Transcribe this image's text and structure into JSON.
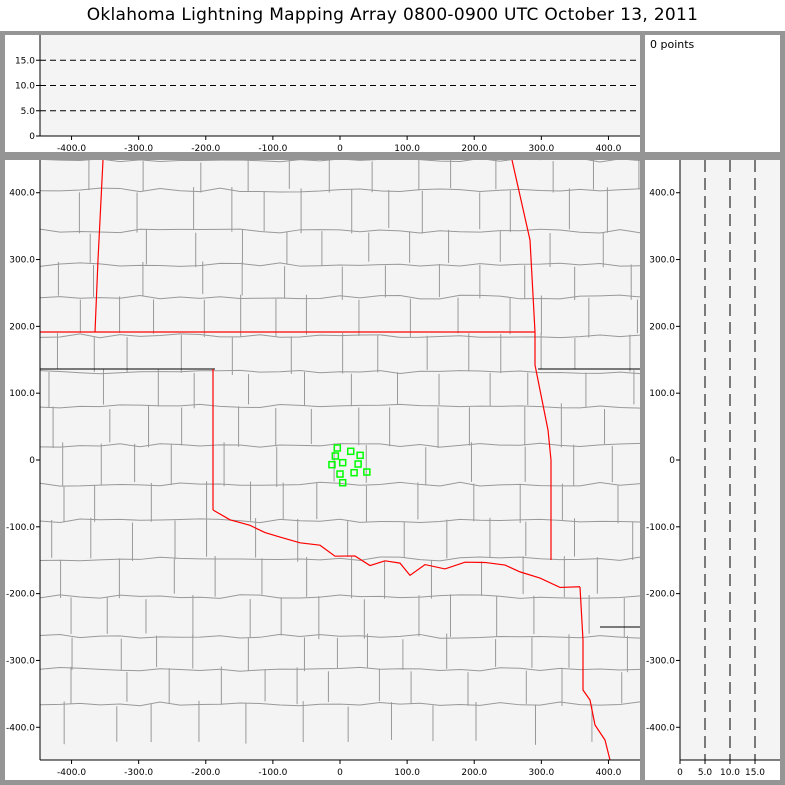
{
  "title": "Oklahoma Lightning Mapping Array   0800-0900 UTC  October 13, 2011",
  "points_label": "0 points",
  "colors": {
    "background": "#f4f4f4",
    "frame": "#959595",
    "county_lines": "#999999",
    "state_border": "#ff0000",
    "other_border": "#000000",
    "source_points": "#00ff00",
    "altitude_guides": "#000000"
  },
  "chart_data": [
    {
      "panel": "altitude-vs-east-west",
      "type": "scatter",
      "x_ticks": [
        "-400.0",
        "-300.0",
        "-200.0",
        "-100.0",
        "0",
        "100.0",
        "200.0",
        "300.0",
        "400.0"
      ],
      "y_ticks": [
        "0",
        "5.0",
        "10.0",
        "15.0"
      ],
      "xlim": [
        -447,
        447
      ],
      "ylim": [
        0,
        20
      ],
      "dashed_guides": [
        5,
        10,
        15
      ],
      "points": []
    },
    {
      "panel": "plan-view",
      "type": "scatter",
      "x_ticks": [
        "-400.0",
        "-300.0",
        "-200.0",
        "-100.0",
        "0",
        "100.0",
        "200.0",
        "300.0",
        "400.0"
      ],
      "y_ticks": [
        "400.0",
        "300.0",
        "200.0",
        "100.0",
        "0",
        "-100.0",
        "-200.0",
        "-300.0",
        "-400.0"
      ],
      "xlim": [
        -447,
        447
      ],
      "ylim": [
        -449,
        449
      ],
      "points": [
        {
          "x": -4,
          "y": 18
        },
        {
          "x": 16,
          "y": 13
        },
        {
          "x": 30,
          "y": 7
        },
        {
          "x": -7,
          "y": 6
        },
        {
          "x": 4,
          "y": -4
        },
        {
          "x": -12,
          "y": -7
        },
        {
          "x": 27,
          "y": -6
        },
        {
          "x": 0,
          "y": -21
        },
        {
          "x": 21,
          "y": -19
        },
        {
          "x": 40,
          "y": -18
        },
        {
          "x": 4,
          "y": -34
        }
      ]
    },
    {
      "panel": "north-south-vs-altitude",
      "type": "scatter",
      "x_ticks": [
        "0",
        "5.0",
        "10.0",
        "15.0"
      ],
      "y_ticks": [
        "400.0",
        "300.0",
        "200.0",
        "100.0",
        "0",
        "-100.0",
        "-200.0",
        "-300.0",
        "-400.0"
      ],
      "xlim": [
        0,
        20
      ],
      "ylim": [
        -449,
        449
      ],
      "dashed_guides": [
        5,
        10,
        15
      ],
      "points": []
    }
  ]
}
